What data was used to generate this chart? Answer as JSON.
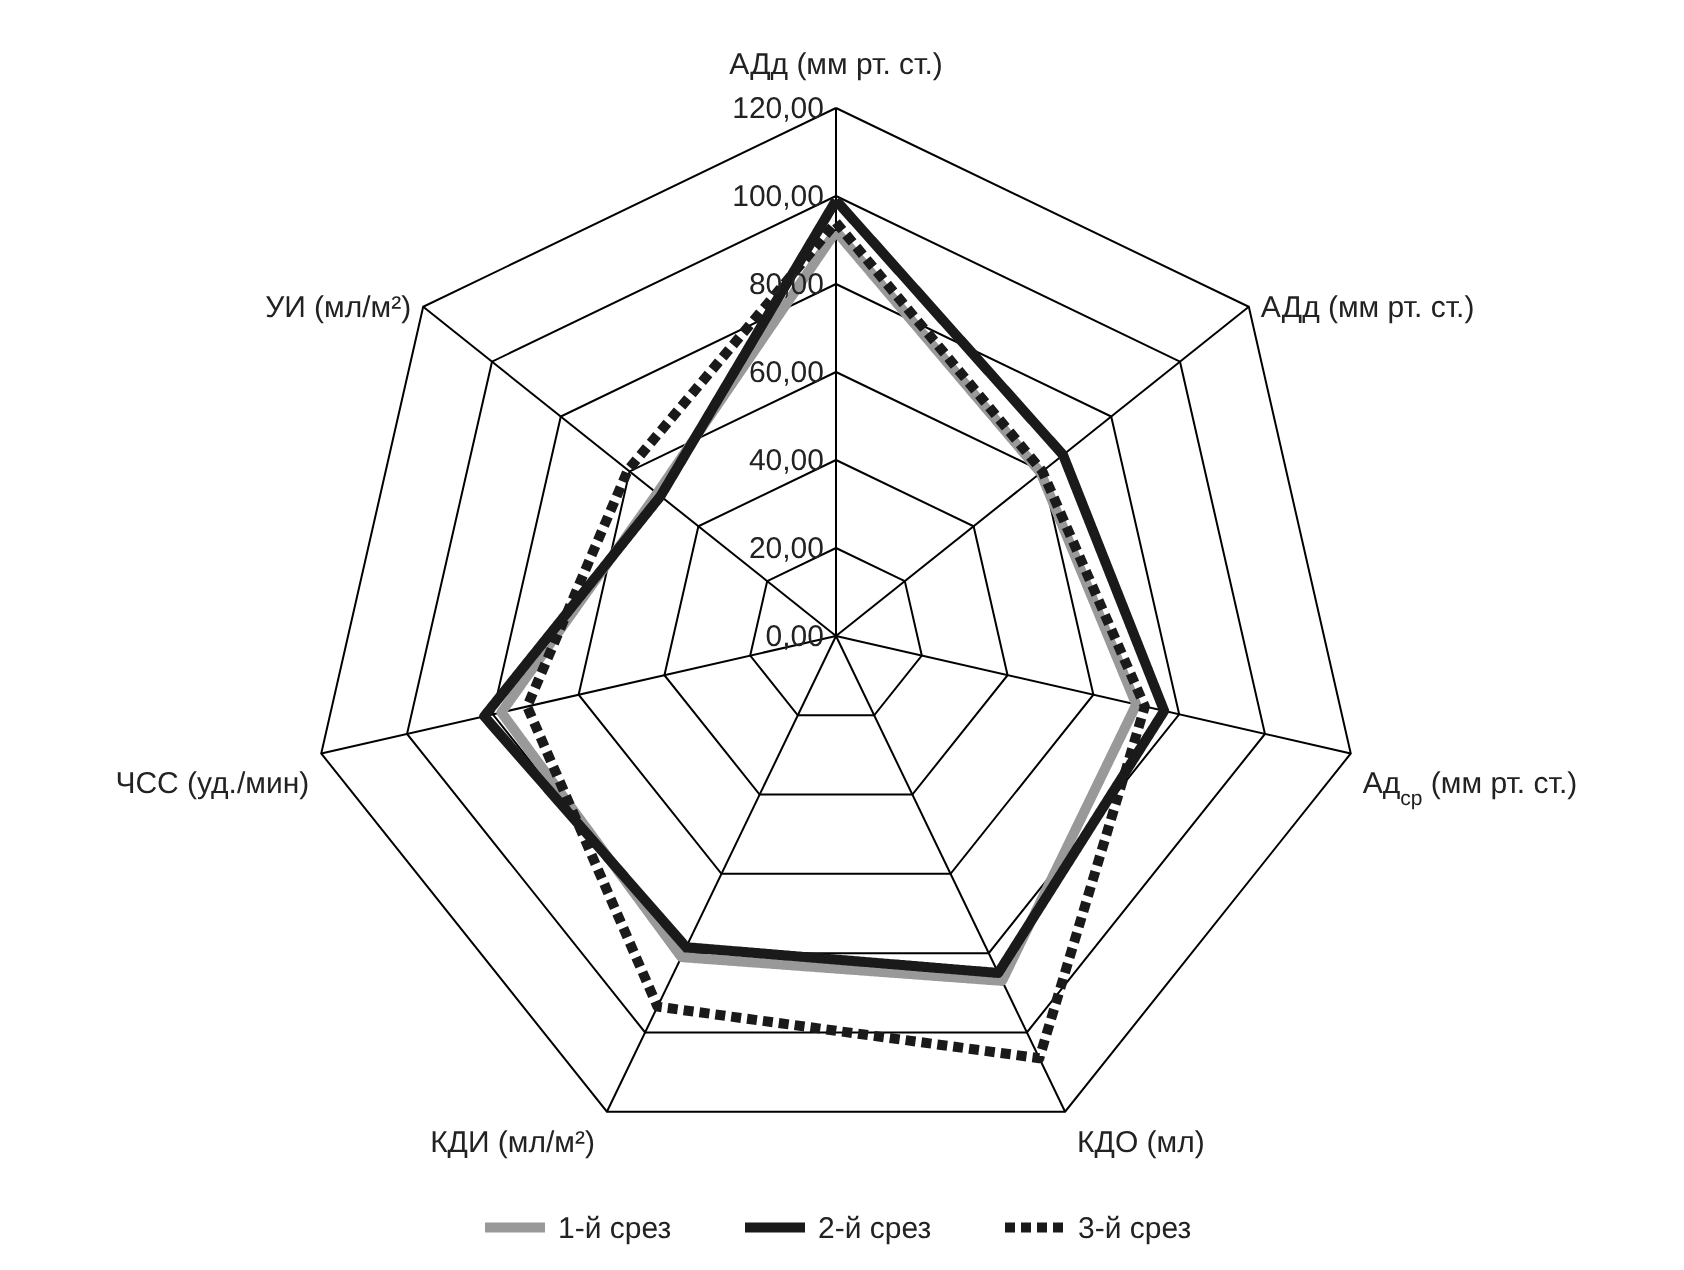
{
  "chart_data": {
    "type": "radar",
    "categories": [
      "АДд (мм рт. ст.)",
      "АДд (мм рт. ст.)",
      "Ад$_{ср}$ (мм рт. ст.)",
      "КДО (мл)",
      "КДИ (мл/м²)",
      "ЧСС (уд./мин)",
      "УИ (мл/м²)"
    ],
    "series": [
      {
        "name": "1-й срез",
        "color": "#999999",
        "line_style": "solid",
        "values": [
          92,
          59.5,
          70,
          87,
          81,
          78,
          52
        ]
      },
      {
        "name": "2-й срез",
        "color": "#1a1a1a",
        "line_style": "solid",
        "values": [
          99,
          66,
          76.5,
          85,
          78.5,
          82,
          51
        ]
      },
      {
        "name": "3-й срез",
        "color": "#1a1a1a",
        "line_style": "dashed",
        "values": [
          94,
          60,
          72,
          106.5,
          93.5,
          72,
          60.5
        ]
      }
    ],
    "ylim": [
      0,
      120
    ],
    "yticks": [
      {
        "value": 0,
        "label": "0,00"
      },
      {
        "value": 20,
        "label": "20,00"
      },
      {
        "value": 40,
        "label": "40,00"
      },
      {
        "value": 60,
        "label": "60,00"
      },
      {
        "value": 80,
        "label": "80,00"
      },
      {
        "value": 100,
        "label": "100,00"
      },
      {
        "value": 120,
        "label": "120,00"
      }
    ],
    "grid": true,
    "legend": "bottom"
  }
}
